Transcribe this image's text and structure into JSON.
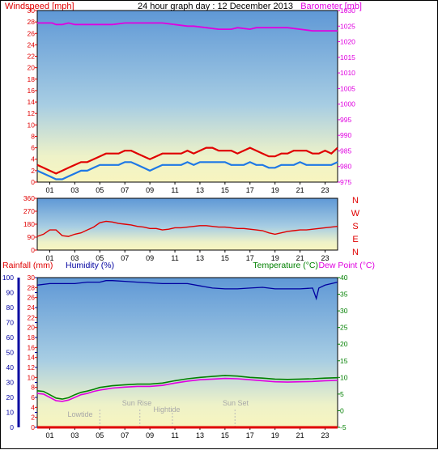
{
  "colors": {
    "wind": "#e00000",
    "baro": "#e000e0",
    "dir": "#e00000",
    "humidity": "#0000a0",
    "temp": "#008000",
    "dew": "#e000e0",
    "rain": "#e00000",
    "wind_avg": "#1e78e6",
    "sky_top": "#6fa8dc",
    "sky_bottom": "#f7f4c0",
    "axis": "#000000"
  },
  "header": {
    "left": "Windspeed [mph]",
    "center": "24 hour graph day : 12 December 2013",
    "right": "Barometer [mb]"
  },
  "labels": {
    "rain": "Rainfall (mm)",
    "humidity": "Humidity (%)",
    "temp": "Temperature (°C)",
    "dew": "Dew Point (°C)",
    "compass": [
      "N",
      "W",
      "S",
      "E",
      "N"
    ],
    "events": [
      "Lowtide",
      "Sun Rise",
      "Hightide",
      "Sun Set"
    ]
  },
  "chart_data": [
    {
      "type": "line",
      "x_ticks": [
        "01",
        "03",
        "05",
        "07",
        "09",
        "11",
        "13",
        "15",
        "17",
        "19",
        "21",
        "23"
      ],
      "y_left_ticks": [
        "0",
        "2",
        "4",
        "6",
        "8",
        "10",
        "12",
        "14",
        "16",
        "18",
        "20",
        "22",
        "24",
        "26",
        "28",
        "30"
      ],
      "y_right_ticks": [
        "975",
        "980",
        "985",
        "990",
        "995",
        "1000",
        "1005",
        "1010",
        "1015",
        "1020",
        "1025",
        "1030"
      ],
      "xlim": [
        0,
        24
      ],
      "ylim": [
        0,
        30
      ],
      "y2lim": [
        975,
        1030
      ],
      "series": [
        {
          "axis": "y2",
          "x": [
            0,
            1.2,
            1.5,
            2,
            2.5,
            3,
            4,
            6,
            7,
            10,
            11,
            12,
            12.5,
            13.5,
            14.5,
            15.5,
            16,
            17,
            17.5,
            19,
            20,
            21,
            22,
            23,
            24
          ],
          "values": [
            1026,
            1026,
            1025.5,
            1025.5,
            1026,
            1025.5,
            1025.5,
            1025.5,
            1026,
            1026,
            1025.5,
            1025,
            1025,
            1024.5,
            1024,
            1024,
            1024.5,
            1024,
            1024.5,
            1024.5,
            1024.5,
            1024,
            1023.5,
            1023.5,
            1023.5
          ]
        },
        {
          "x": [
            0,
            0.5,
            1,
            1.5,
            2,
            2.5,
            3,
            3.5,
            4,
            4.5,
            5,
            5.5,
            6,
            6.5,
            7,
            7.5,
            8,
            8.5,
            9,
            9.5,
            10,
            10.5,
            11,
            11.5,
            12,
            12.5,
            13,
            13.5,
            14,
            14.5,
            15,
            15.5,
            16,
            16.5,
            17,
            17.5,
            18,
            18.5,
            19,
            19.5,
            20,
            20.5,
            21,
            21.5,
            22,
            22.5,
            23,
            23.5,
            24
          ],
          "values": [
            3,
            2.5,
            2,
            1.5,
            2,
            2.5,
            3,
            3.5,
            3.5,
            4,
            4.5,
            5,
            5,
            5,
            5.5,
            5.5,
            5,
            4.5,
            4,
            4.5,
            5,
            5,
            5,
            5,
            5.5,
            5,
            5.5,
            6,
            6,
            5.5,
            5.5,
            5.5,
            5,
            5.5,
            6,
            5.5,
            5,
            4.5,
            4.5,
            5,
            5,
            5.5,
            5.5,
            5.5,
            5,
            5,
            5.5,
            5,
            6
          ]
        },
        {
          "x": [
            0,
            0.5,
            1,
            1.5,
            2,
            2.5,
            3,
            3.5,
            4,
            4.5,
            5,
            5.5,
            6,
            6.5,
            7,
            7.5,
            8,
            8.5,
            9,
            9.5,
            10,
            10.5,
            11,
            11.5,
            12,
            12.5,
            13,
            13.5,
            14,
            14.5,
            15,
            15.5,
            16,
            16.5,
            17,
            17.5,
            18,
            18.5,
            19,
            19.5,
            20,
            20.5,
            21,
            21.5,
            22,
            22.5,
            23,
            23.5,
            24
          ],
          "values": [
            2,
            1.5,
            1,
            0.5,
            0.5,
            1,
            1.5,
            2,
            2,
            2.5,
            3,
            3,
            3,
            3,
            3.5,
            3.5,
            3,
            2.5,
            2,
            2.5,
            3,
            3,
            3,
            3,
            3.5,
            3,
            3.5,
            3.5,
            3.5,
            3.5,
            3.5,
            3,
            3,
            3,
            3.5,
            3,
            3,
            2.5,
            2.5,
            3,
            3,
            3,
            3.5,
            3,
            3,
            3,
            3,
            3,
            3.5
          ]
        }
      ]
    },
    {
      "type": "line",
      "y_ticks": [
        "0",
        "90",
        "180",
        "270",
        "360"
      ],
      "ylim": [
        0,
        360
      ],
      "series": [
        {
          "x": [
            0,
            0.5,
            1,
            1.5,
            2,
            2.5,
            3,
            3.5,
            4,
            4.5,
            5,
            5.5,
            6,
            6.5,
            7,
            7.5,
            8,
            8.5,
            9,
            9.5,
            10,
            10.5,
            11,
            11.5,
            12,
            12.5,
            13,
            13.5,
            14,
            14.5,
            15,
            15.5,
            16,
            16.5,
            17,
            17.5,
            18,
            18.5,
            19,
            19.5,
            20,
            20.5,
            21,
            21.5,
            22,
            22.5,
            23,
            23.5,
            24
          ],
          "values": [
            95,
            110,
            140,
            140,
            100,
            95,
            110,
            120,
            140,
            160,
            190,
            200,
            195,
            185,
            180,
            175,
            165,
            160,
            150,
            150,
            140,
            145,
            155,
            155,
            160,
            165,
            170,
            170,
            165,
            160,
            160,
            155,
            150,
            150,
            145,
            140,
            135,
            120,
            110,
            120,
            130,
            135,
            140,
            140,
            145,
            150,
            155,
            160,
            165
          ]
        }
      ]
    },
    {
      "type": "line",
      "x_ticks": [
        "01",
        "03",
        "05",
        "07",
        "09",
        "11",
        "13",
        "15",
        "17",
        "19",
        "21",
        "23"
      ],
      "y_left_ticks": [
        "0",
        "10",
        "20",
        "30",
        "40",
        "50",
        "60",
        "70",
        "80",
        "90",
        "100"
      ],
      "y_rain_ticks": [
        "0",
        "2",
        "4",
        "6",
        "8",
        "10",
        "12",
        "14",
        "16",
        "18",
        "20",
        "22",
        "24",
        "26",
        "28",
        "30"
      ],
      "y_right_ticks": [
        "-5",
        "0",
        "5",
        "10",
        "15",
        "20",
        "25",
        "30",
        "35",
        "40"
      ],
      "ylim": [
        0,
        100
      ],
      "y2lim": [
        -5,
        40
      ],
      "series": [
        {
          "x": [
            0,
            1,
            2,
            3,
            4,
            5,
            5.5,
            6,
            7,
            8,
            9,
            10,
            11,
            12,
            13,
            14,
            15,
            16,
            17,
            18,
            19,
            20,
            21,
            22,
            22.3,
            22.5,
            23,
            24
          ],
          "values": [
            95,
            96,
            96,
            96,
            97,
            97,
            98,
            98,
            97.5,
            97,
            96.5,
            96,
            96,
            96,
            94.5,
            93,
            92.5,
            92.5,
            93,
            93.5,
            92.5,
            92.5,
            92.5,
            93,
            86,
            93,
            95,
            97
          ]
        },
        {
          "axis": "y2",
          "x": [
            0,
            0.5,
            1,
            1.5,
            2,
            2.5,
            3,
            3.5,
            4,
            4.5,
            5,
            6,
            7,
            8,
            9,
            10,
            11,
            12,
            13,
            14,
            15,
            16,
            17,
            18,
            19,
            20,
            21,
            22,
            23,
            24
          ],
          "values": [
            6,
            5.8,
            4.8,
            3.8,
            3.5,
            3.9,
            4.8,
            5.5,
            5.9,
            6.4,
            7,
            7.5,
            7.8,
            8,
            8,
            8.3,
            9,
            9.6,
            10,
            10.3,
            10.6,
            10.4,
            10,
            9.8,
            9.5,
            9.4,
            9.5,
            9.6,
            9.8,
            9.9
          ]
        },
        {
          "axis": "y2",
          "x": [
            0,
            0.5,
            1,
            1.5,
            2,
            2.5,
            3,
            3.5,
            4,
            4.5,
            5,
            6,
            7,
            8,
            9,
            10,
            11,
            12,
            13,
            14,
            15,
            16,
            17,
            18,
            19,
            20,
            21,
            22,
            23,
            24
          ],
          "values": [
            5.2,
            5,
            4,
            3,
            2.8,
            3.2,
            4,
            4.8,
            5.2,
            5.8,
            6.2,
            6.8,
            7.1,
            7.3,
            7.3,
            7.6,
            8.3,
            8.9,
            9.3,
            9.5,
            9.7,
            9.6,
            9.3,
            9,
            8.7,
            8.6,
            8.7,
            8.8,
            9,
            9.1
          ]
        },
        {
          "axis": "rain",
          "x": [
            0,
            24
          ],
          "values": [
            0,
            0
          ]
        }
      ]
    }
  ]
}
